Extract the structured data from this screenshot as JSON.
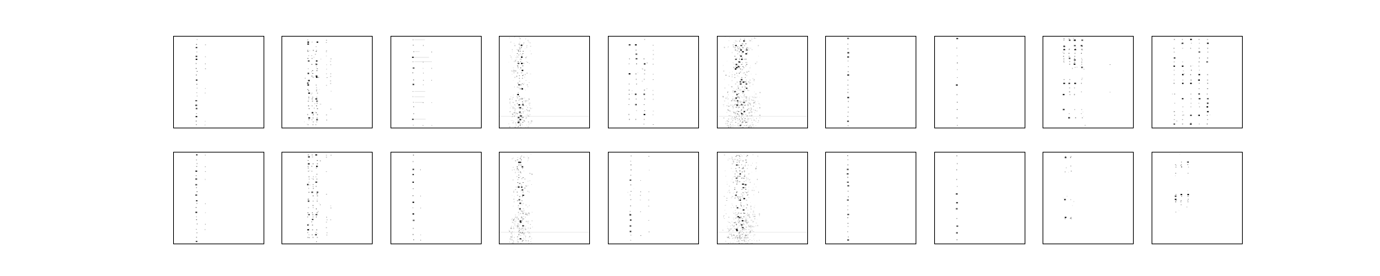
{
  "figure": {
    "layout": "grid",
    "rows": 2,
    "columns": 10,
    "background_color": "#ffffff",
    "frame_color": "#000000",
    "mark_color": "#000000",
    "panel_style": "grayscale spectrogram-like images",
    "panels": [
      {
        "row": 0,
        "col": 0,
        "pattern": "single-vertical-streak-sparse-dots"
      },
      {
        "row": 0,
        "col": 1,
        "pattern": "dense-vertical-band-multiple-streaks"
      },
      {
        "row": 0,
        "col": 2,
        "pattern": "vertical-streak-with-horizontal-dashes"
      },
      {
        "row": 0,
        "col": 3,
        "pattern": "noisy-vertical-band-bottom-heavy"
      },
      {
        "row": 0,
        "col": 4,
        "pattern": "multiple-vertical-streaks"
      },
      {
        "row": 0,
        "col": 5,
        "pattern": "very-noisy-vertical-band"
      },
      {
        "row": 0,
        "col": 6,
        "pattern": "single-vertical-streak"
      },
      {
        "row": 0,
        "col": 7,
        "pattern": "sparse-single-streak"
      },
      {
        "row": 0,
        "col": 8,
        "pattern": "multiple-streaks-top-heavy"
      },
      {
        "row": 0,
        "col": 9,
        "pattern": "multiple-streaks-grid-like"
      },
      {
        "row": 1,
        "col": 0,
        "pattern": "single-vertical-streak-sparse-dots"
      },
      {
        "row": 1,
        "col": 1,
        "pattern": "dense-vertical-band-multiple-streaks"
      },
      {
        "row": 1,
        "col": 2,
        "pattern": "vertical-streak-sparse"
      },
      {
        "row": 1,
        "col": 3,
        "pattern": "noisy-vertical-band-bottom-heavy"
      },
      {
        "row": 1,
        "col": 4,
        "pattern": "vertical-streak-with-side-dots"
      },
      {
        "row": 1,
        "col": 5,
        "pattern": "very-noisy-vertical-band"
      },
      {
        "row": 1,
        "col": 6,
        "pattern": "single-vertical-streak"
      },
      {
        "row": 1,
        "col": 7,
        "pattern": "sparse-single-streak"
      },
      {
        "row": 1,
        "col": 8,
        "pattern": "sparse-streaks-top-and-middle"
      },
      {
        "row": 1,
        "col": 9,
        "pattern": "multiple-streaks-top-and-middle"
      }
    ]
  }
}
